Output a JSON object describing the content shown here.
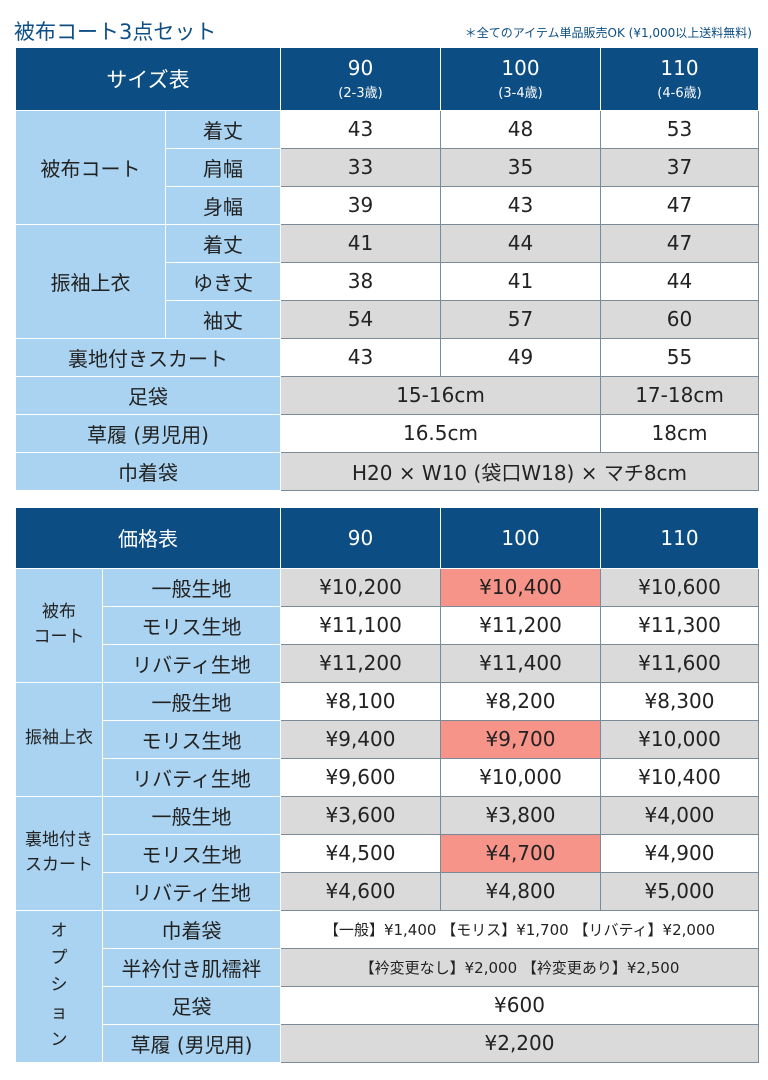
{
  "title": "被布コート3点セット",
  "note": "＊全てのアイテム単品販売OK (¥1,000以上送料無料)",
  "size": {
    "header": "サイズ表",
    "cols": [
      {
        "size": "90",
        "age": "(2-3歳)"
      },
      {
        "size": "100",
        "age": "(3-4歳)"
      },
      {
        "size": "110",
        "age": "(4-6歳)"
      }
    ],
    "coat": {
      "label": "被布コート",
      "rows": [
        [
          "着丈",
          "43",
          "48",
          "53"
        ],
        [
          "肩幅",
          "33",
          "35",
          "37"
        ],
        [
          "身幅",
          "39",
          "43",
          "47"
        ]
      ]
    },
    "top": {
      "label": "振袖上衣",
      "rows": [
        [
          "着丈",
          "41",
          "44",
          "47"
        ],
        [
          "ゆき丈",
          "38",
          "41",
          "44"
        ],
        [
          "袖丈",
          "54",
          "57",
          "60"
        ]
      ]
    },
    "skirt": [
      "裏地付きスカート",
      "43",
      "49",
      "55"
    ],
    "tabi": [
      "足袋",
      "15-16cm",
      "17-18cm"
    ],
    "zori": [
      "草履 (男児用)",
      "16.5cm",
      "18cm"
    ],
    "bag": [
      "巾着袋",
      "H20 × W10 (袋口W18) × マチ8cm"
    ]
  },
  "price": {
    "header": "価格表",
    "cols": [
      "90",
      "100",
      "110"
    ],
    "coat": {
      "label1": "被布",
      "label2": "コート",
      "rows": [
        [
          "一般生地",
          "¥10,200",
          "¥10,400",
          "¥10,600"
        ],
        [
          "モリス生地",
          "¥11,100",
          "¥11,200",
          "¥11,300"
        ],
        [
          "リバティ生地",
          "¥11,200",
          "¥11,400",
          "¥11,600"
        ]
      ]
    },
    "top": {
      "label": "振袖上衣",
      "rows": [
        [
          "一般生地",
          "¥8,100",
          "¥8,200",
          "¥8,300"
        ],
        [
          "モリス生地",
          "¥9,400",
          "¥9,700",
          "¥10,000"
        ],
        [
          "リバティ生地",
          "¥9,600",
          "¥10,000",
          "¥10,400"
        ]
      ]
    },
    "skirt": {
      "label1": "裏地付き",
      "label2": "スカート",
      "rows": [
        [
          "一般生地",
          "¥3,600",
          "¥3,800",
          "¥4,000"
        ],
        [
          "モリス生地",
          "¥4,500",
          "¥4,700",
          "¥4,900"
        ],
        [
          "リバティ生地",
          "¥4,600",
          "¥4,800",
          "¥5,000"
        ]
      ]
    },
    "option": {
      "label": [
        "オ",
        "プ",
        "シ",
        "ョ",
        "ン"
      ],
      "rows": [
        [
          "巾着袋",
          "【一般】¥1,400 【モリス】¥1,700 【リバティ】¥2,000"
        ],
        [
          "半衿付き肌襦袢",
          "【衿変更なし】¥2,000 【衿変更あり】¥2,500"
        ],
        [
          "足袋",
          "¥600"
        ],
        [
          "草履 (男児用)",
          "¥2,200"
        ]
      ]
    }
  },
  "colors": {
    "header": "#0c4d84",
    "label": "#a9d3f1",
    "gray": "#dadada",
    "highlight": "#f69489"
  }
}
